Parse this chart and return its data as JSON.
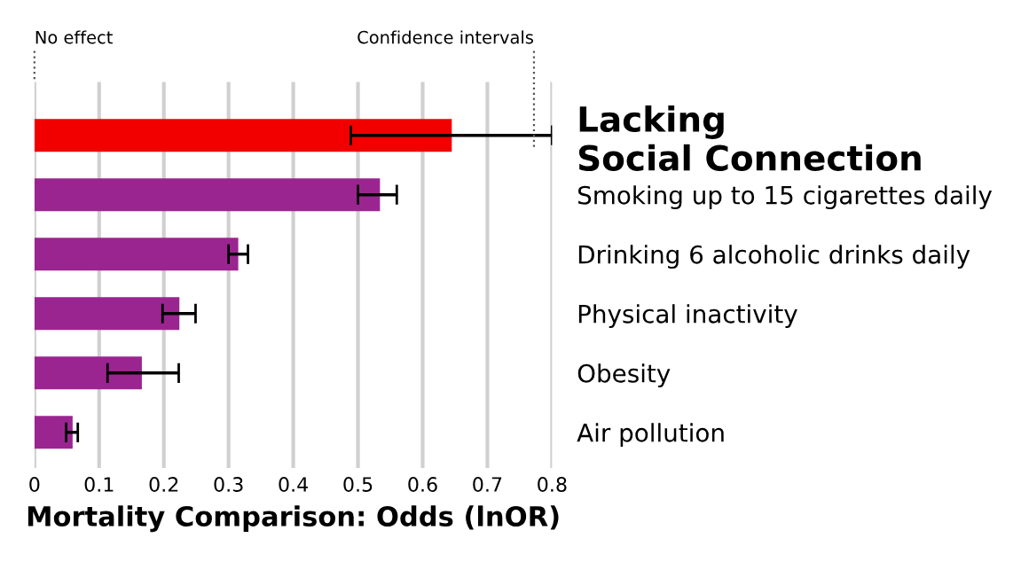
{
  "chart_data": {
    "type": "bar",
    "orientation": "horizontal",
    "xlabel": "Mortality Comparison: Odds (lnOR)",
    "categories": [
      "Lacking\nSocial Connection",
      "Smoking up to 15 cigarettes daily",
      "Drinking 6 alcoholic drinks daily",
      "Physical inactivity",
      "Obesity",
      "Air pollution"
    ],
    "values": [
      0.645,
      0.534,
      0.315,
      0.224,
      0.166,
      0.059
    ],
    "errors": [
      [
        0.489,
        0.8
      ],
      [
        0.5,
        0.56
      ],
      [
        0.3,
        0.33
      ],
      [
        0.198,
        0.249
      ],
      [
        0.113,
        0.223
      ],
      [
        0.049,
        0.067
      ]
    ],
    "colors": [
      "#f20000",
      "#9b2590",
      "#9b2590",
      "#9b2590",
      "#9b2590",
      "#9b2590"
    ],
    "xlim": [
      0,
      0.8
    ],
    "xticks": [
      0,
      0.1,
      0.2,
      0.3,
      0.4,
      0.5,
      0.6,
      0.7,
      0.8
    ],
    "grid": "x",
    "annotations": [
      "No effect",
      "Confidence intervals"
    ]
  }
}
